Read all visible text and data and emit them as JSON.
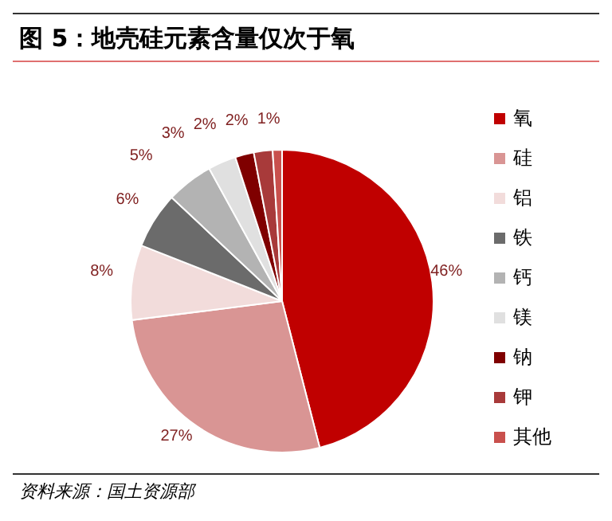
{
  "chart_data": {
    "type": "pie",
    "title": "图 5：地壳硅元素含量仅次于氧",
    "categories": [
      "氧",
      "硅",
      "铝",
      "铁",
      "钙",
      "镁",
      "钠",
      "钾",
      "其他"
    ],
    "values": [
      46,
      27,
      8,
      6,
      5,
      3,
      2,
      2,
      1
    ],
    "colors": [
      "#c00000",
      "#d99594",
      "#f2dcdb",
      "#6b6b6b",
      "#b3b3b3",
      "#e0e0e0",
      "#7f0000",
      "#a83a3a",
      "#c9504d"
    ],
    "value_labels": [
      "46%",
      "27%",
      "8%",
      "6%",
      "5%",
      "3%",
      "2%",
      "2%",
      "1%"
    ],
    "legend": "right",
    "annotations": [
      "资料来源：国土资源部"
    ]
  }
}
